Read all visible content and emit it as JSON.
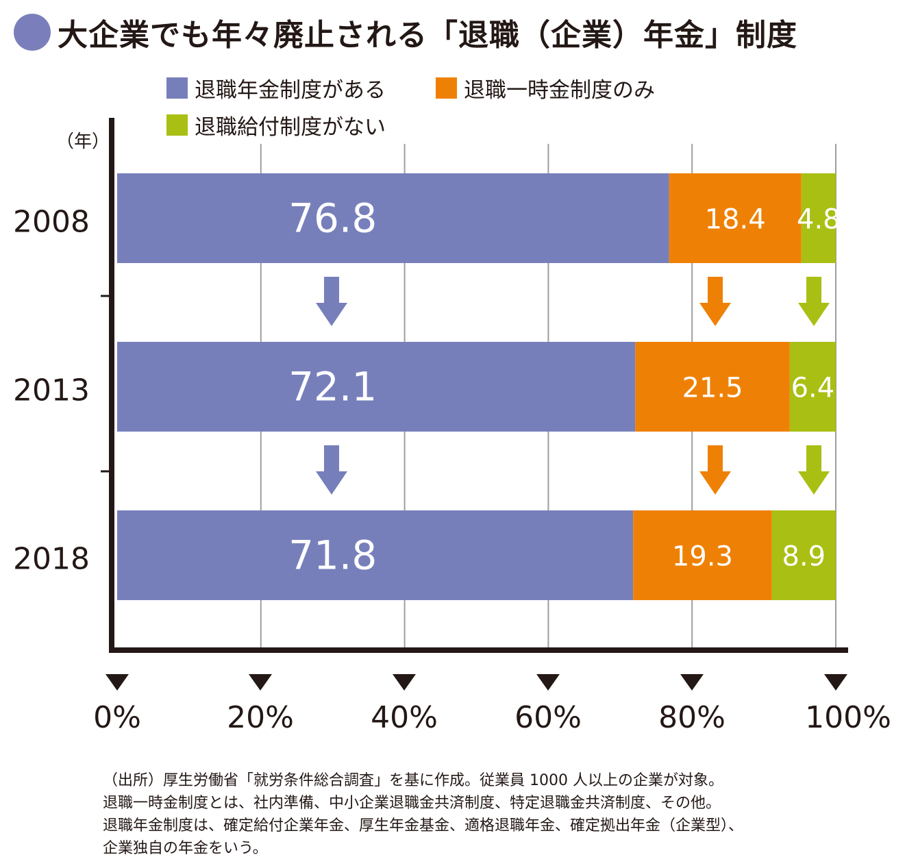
{
  "title": "大企業でも年々廃止される「退職（企業）年金」制度",
  "title_marker_color": "#7a7fbb",
  "unit_label": "（年）",
  "chart_data": {
    "type": "bar",
    "orientation": "horizontal",
    "stacked": true,
    "categories": [
      "2008",
      "2013",
      "2018"
    ],
    "series": [
      {
        "name": "退職年金制度がある",
        "color": "#777fbb",
        "values": [
          76.8,
          72.1,
          71.8
        ],
        "labels": [
          "76.8",
          "72.1",
          "71.8"
        ]
      },
      {
        "name": "退職一時金制度のみ",
        "color": "#ee8105",
        "values": [
          18.4,
          21.5,
          19.3
        ],
        "labels": [
          "18.4",
          "21.5",
          "19.3"
        ]
      },
      {
        "name": "退職給付制度がない",
        "color": "#a9bf13",
        "values": [
          4.8,
          6.4,
          8.9
        ],
        "labels": [
          "4.8",
          "6.4",
          "8.9"
        ]
      }
    ],
    "xlim": [
      0,
      100
    ],
    "xticks": [
      "0%",
      "20%",
      "40%",
      "60%",
      "80%",
      "100%"
    ],
    "grid": true,
    "legend": "top",
    "trend_arrows": "down"
  },
  "notes": [
    "（出所）厚生労働省「就労条件総合調査」を基に作成。従業員 1000 人以上の企業が対象。",
    "退職一時金制度とは、社内準備、中小企業退職金共済制度、特定退職金共済制度、その他。",
    "退職年金制度は、確定給付企業年金、厚生年金基金、適格退職年金、確定拠出年金（企業型）、",
    "企業独自の年金をいう。"
  ]
}
